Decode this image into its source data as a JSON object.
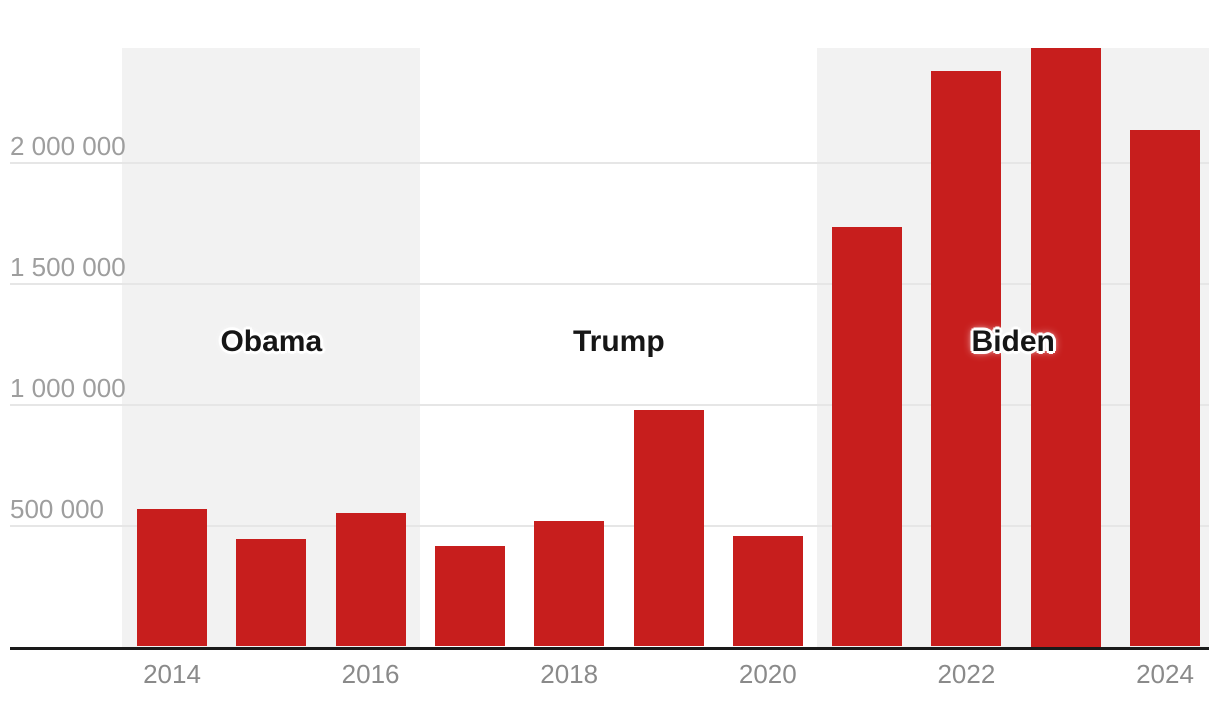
{
  "chart_data": {
    "type": "bar",
    "title": "",
    "xlabel": "",
    "ylabel": "",
    "x": [
      "2014",
      "2015",
      "2016",
      "2017",
      "2018",
      "2019",
      "2020",
      "2021",
      "2022",
      "2023",
      "2024"
    ],
    "values": [
      569000,
      445000,
      553000,
      416000,
      521000,
      978000,
      458000,
      1735000,
      2379000,
      2476000,
      2135000
    ],
    "ylim": [
      0,
      2476000
    ],
    "grid": true,
    "legend_position": "none",
    "yticks": [
      {
        "value": 500000,
        "label": "500 000"
      },
      {
        "value": 1000000,
        "label": "1 000 000"
      },
      {
        "value": 1500000,
        "label": "1 500 000"
      },
      {
        "value": 2000000,
        "label": "2 000 000"
      }
    ],
    "xtick_labels": [
      "2014",
      "2016",
      "2018",
      "2020",
      "2022",
      "2024"
    ],
    "regions": [
      {
        "label": "Obama",
        "from_year": "2014",
        "to_year": "2016",
        "shaded": true
      },
      {
        "label": "Trump",
        "from_year": "2017",
        "to_year": "2020",
        "shaded": false
      },
      {
        "label": "Biden",
        "from_year": "2021",
        "to_year": "2024",
        "shaded": true
      }
    ],
    "colors": {
      "bar": "#c71e1d",
      "shaded_region": "#f2f2f2",
      "gridline": "#e6e6e6",
      "axis_line": "#1a1a1a",
      "ytick_text": "#9e9e9e",
      "xtick_text": "#8a8a8a",
      "region_label_text": "#161616",
      "background": "#ffffff"
    }
  }
}
